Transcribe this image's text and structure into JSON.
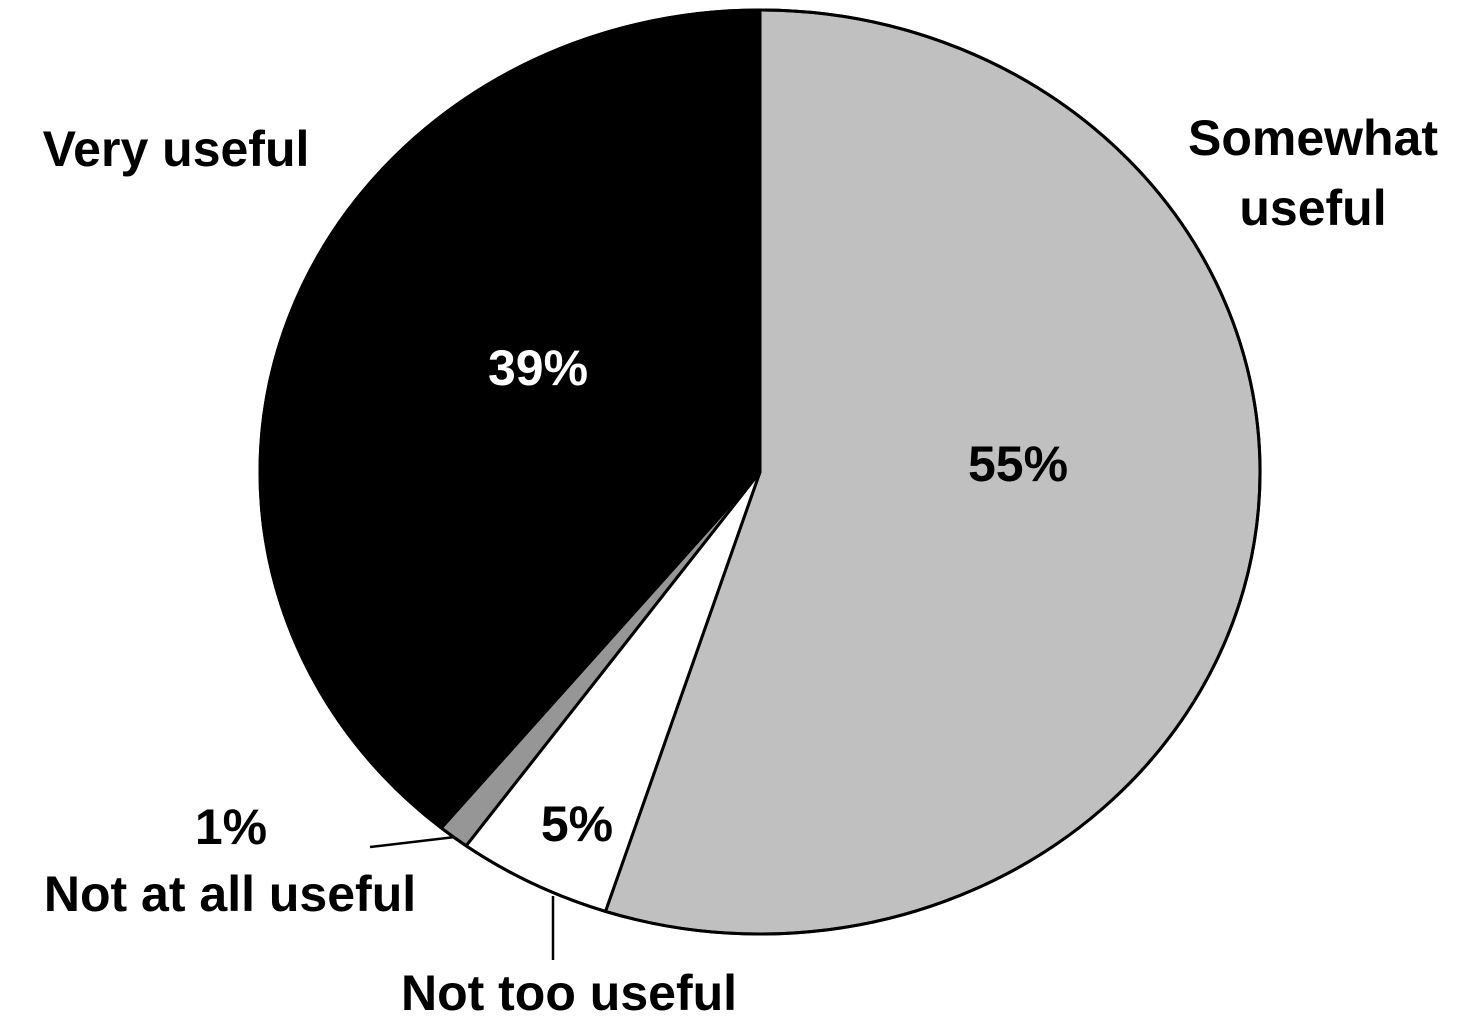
{
  "chart_data": {
    "type": "pie",
    "title": "",
    "start_angle_deg": 90,
    "direction": "clockwise",
    "series": [
      {
        "category": "Somewhat useful",
        "label_lines": [
          "Somewhat",
          "useful"
        ],
        "value": 55,
        "value_label": "55%",
        "color": "#c0c0c0",
        "value_text_color": "#000000"
      },
      {
        "category": "Not too useful",
        "label_lines": [
          "Not too useful"
        ],
        "value": 5,
        "value_label": "5%",
        "color": "#ffffff",
        "value_text_color": "#000000"
      },
      {
        "category": "Not at all useful",
        "label_lines": [
          "Not at all useful"
        ],
        "value": 1,
        "value_label": "1%",
        "color": "#969696",
        "value_text_color": "#000000"
      },
      {
        "category": "Very useful",
        "label_lines": [
          "Very useful"
        ],
        "value": 39,
        "value_label": "39%",
        "color": "#000000",
        "value_text_color": "#ffffff"
      }
    ]
  }
}
